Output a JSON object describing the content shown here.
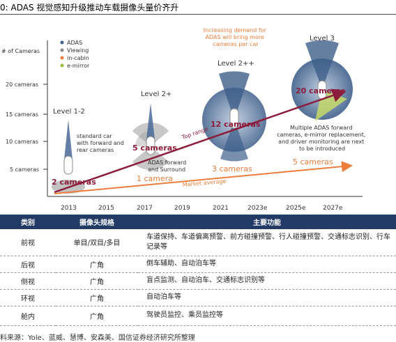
{
  "header": {
    "title": "0: ADAS 视觉感知升级推动车载摄像头量价齐升"
  },
  "colors": {
    "accent": "#8b1c3b",
    "orange": "#ec7d3a",
    "blue": "#3f5f8a",
    "table_header": "#223a66"
  },
  "chart_data": {
    "type": "diagram",
    "ylabel": "# of Cameras",
    "y_ticks": [
      "20 cameras",
      "15 cameras",
      "10 cameras",
      "5 cameras"
    ],
    "x_ticks": [
      "2013",
      "2015",
      "2017",
      "2019",
      "2021",
      "2023e",
      "2025e",
      "2027e"
    ],
    "legend": [
      "ADAS",
      "Viewing",
      "in-cabin",
      "e-mirror"
    ],
    "note": "Increasing demand for ADAS will bring more cameras per car",
    "levels": [
      {
        "name": "Level 1-2",
        "desc": "standard car with forward and rear cameras",
        "count": "2 cameras"
      },
      {
        "name": "Level 2+",
        "desc": "ADAS forward and Surround",
        "count": "5 cameras",
        "market": "1 camera"
      },
      {
        "name": "Level 2++",
        "count": "12 cameras",
        "market": "3 cameras"
      },
      {
        "name": "Level 3",
        "desc": "Multiple ADAS forward cameras, e-mirror replacement, and driver monitoring are next to be introduced",
        "count": "20 cameras",
        "market": "5 cameras"
      }
    ],
    "top_range_label": "Top range",
    "market_average_label": "Market average"
  },
  "table": {
    "headers": [
      "类别",
      "摄像头规格",
      "主要功能"
    ],
    "rows": [
      {
        "category": "前视",
        "spec": "单目/双目/多目",
        "function": "车道保持、车道偏离预警、前方碰撞预警、行人碰撞预警、交通标志识别、行车记录等"
      },
      {
        "category": "后视",
        "spec": "广角",
        "function": "倒车辅助、自动泊车等"
      },
      {
        "category": "侧视",
        "spec": "广角",
        "function": "盲点监测、自动泊车、交通标志识别等"
      },
      {
        "category": "环视",
        "spec": "广角",
        "function": "自动泊车等"
      },
      {
        "category": "舱内",
        "spec": "广角",
        "function": "驾驶员监控、乘员监控等"
      }
    ]
  },
  "footer": {
    "source": "料来源：Yole、蓝威、慧博、安森美、国信证券经济研究所整理"
  }
}
